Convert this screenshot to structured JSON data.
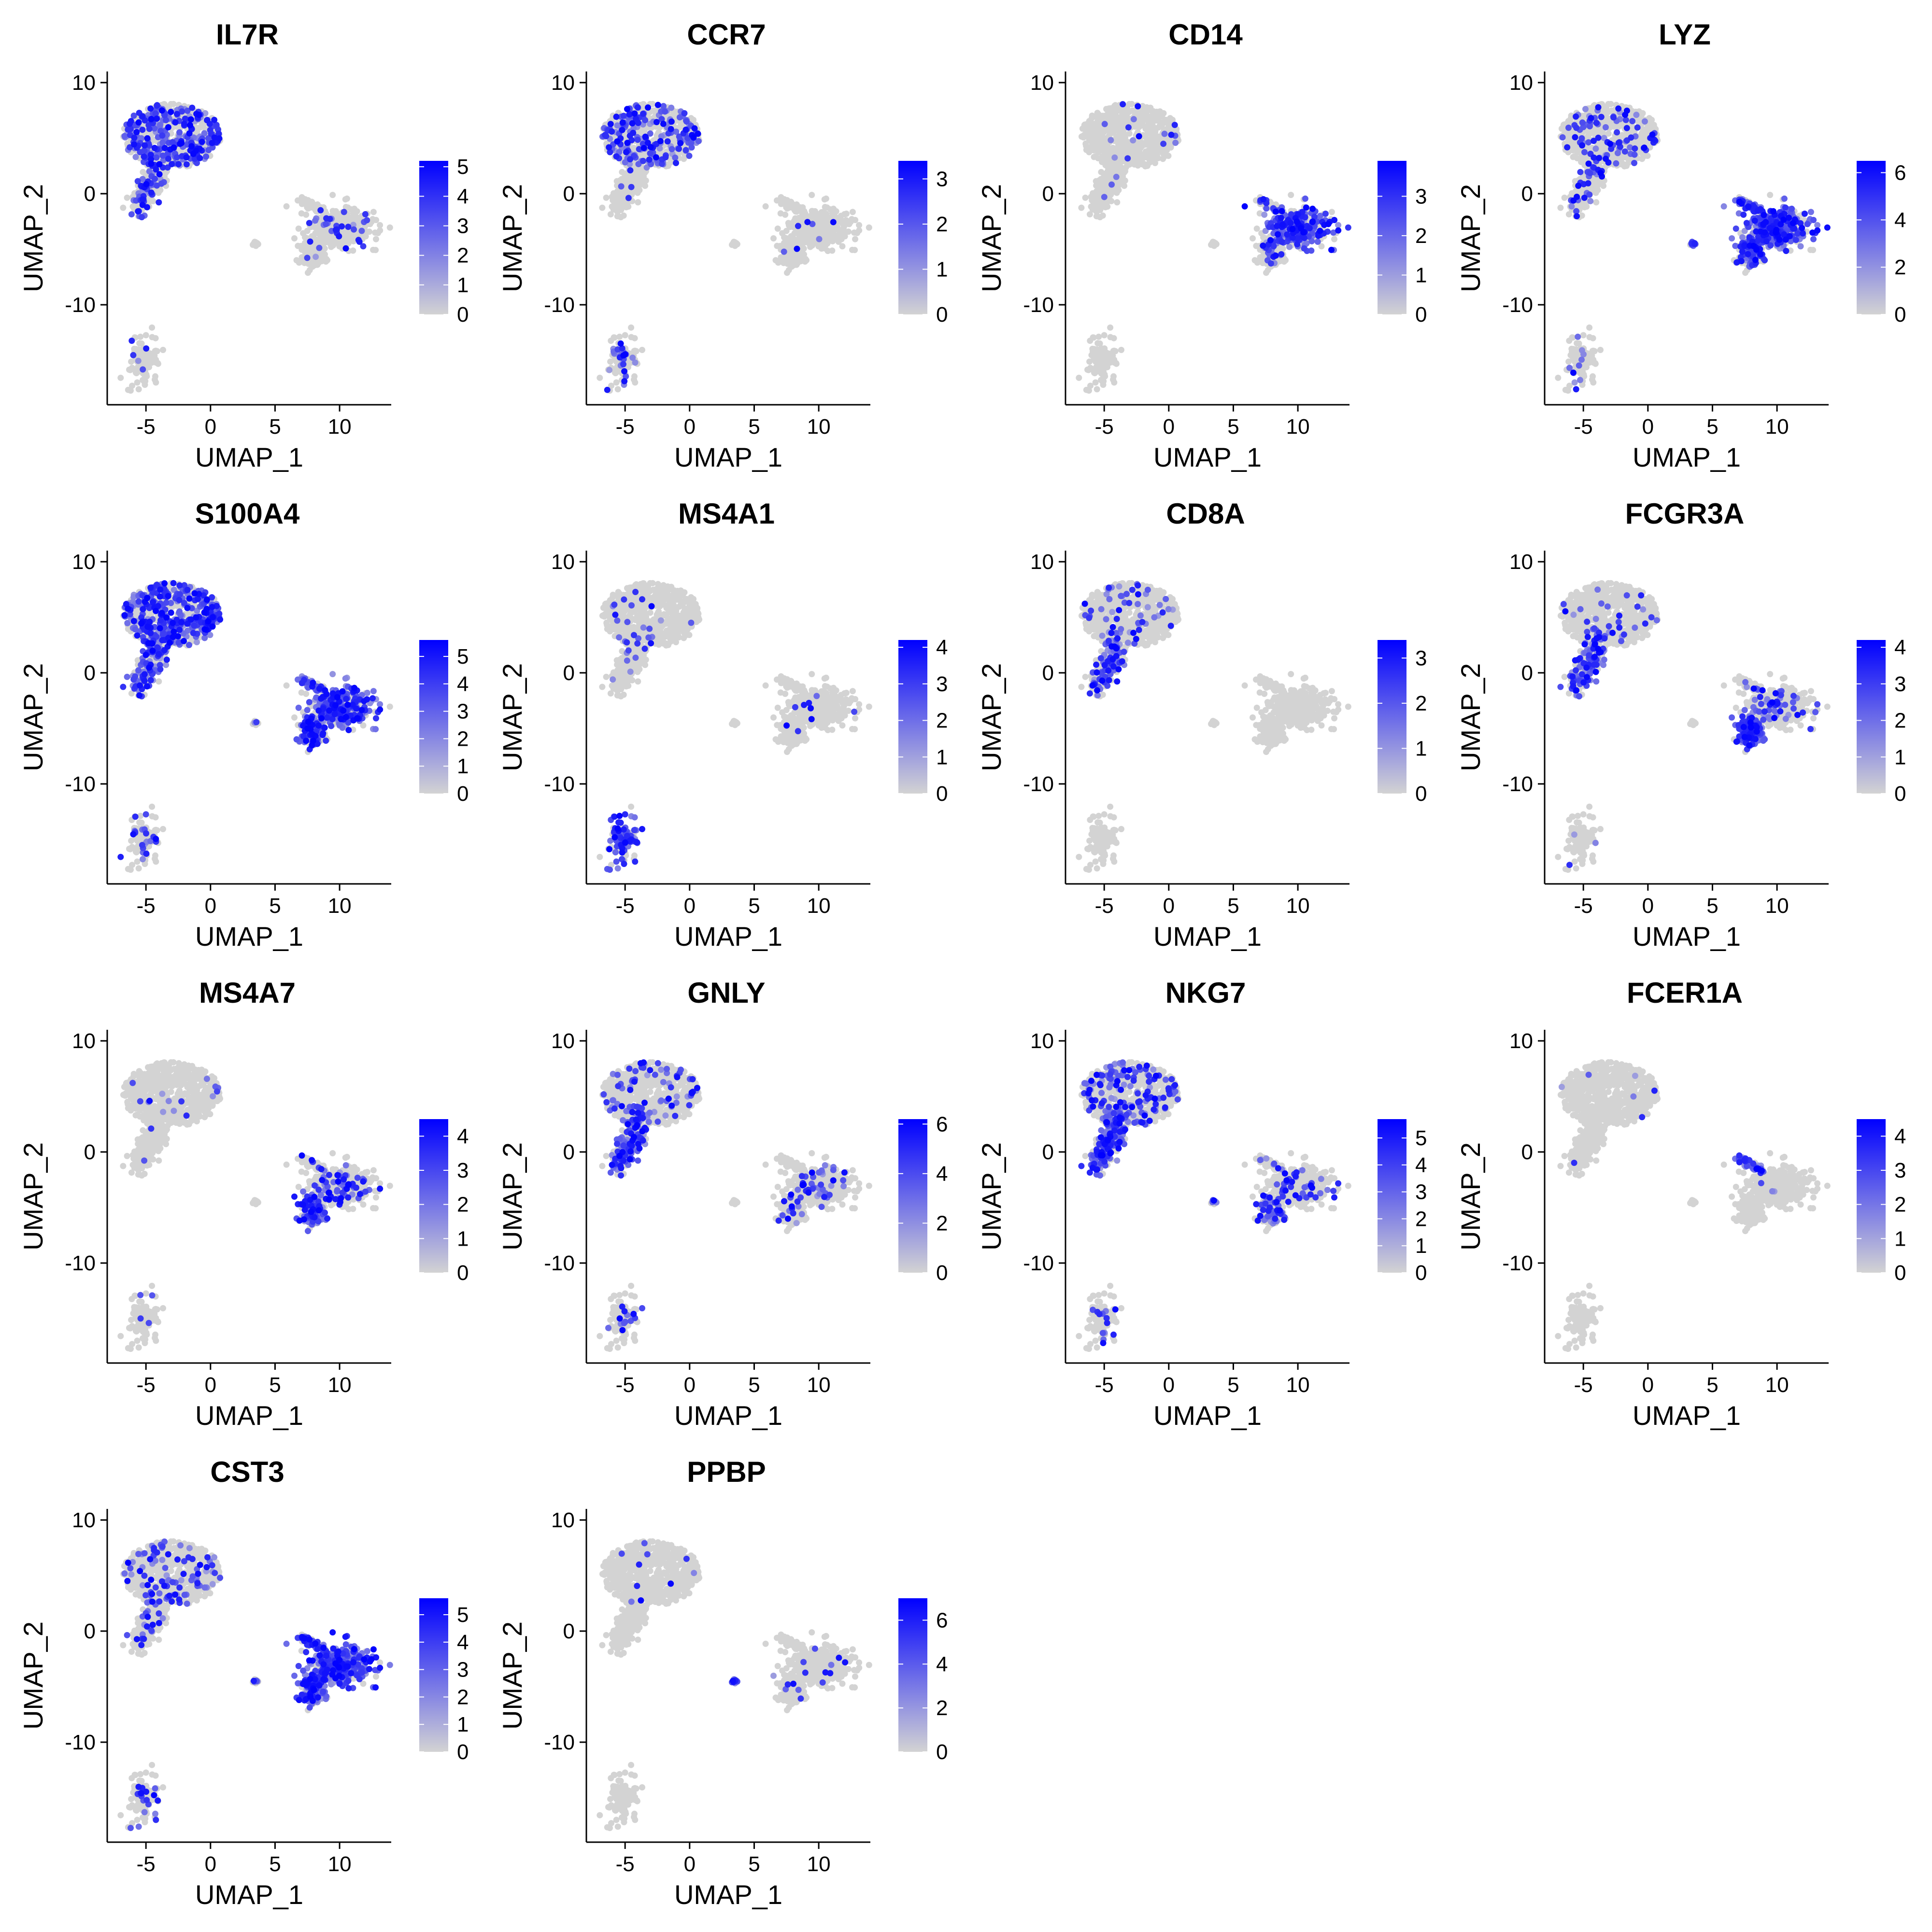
{
  "figure": {
    "colors": {
      "low": "#d3d3d3",
      "high": "#0000ff",
      "axis": "#000000"
    }
  },
  "chart_data": [
    {
      "type": "scatter",
      "title": "IL7R",
      "xlabel": "UMAP_1",
      "ylabel": "UMAP_2",
      "xlim": [
        -8,
        14
      ],
      "ylim": [
        -19,
        11
      ],
      "xticks": [
        -5,
        0,
        5,
        10
      ],
      "yticks": [
        -10,
        0,
        10
      ],
      "color_scale": {
        "min": 0,
        "max": 5.2,
        "ticks": [
          0,
          1,
          2,
          3,
          4,
          5
        ]
      },
      "cluster_expression": {
        "t_main": 0.45,
        "t_tail": 0.3,
        "b": 0.08,
        "mono": 0.08,
        "fcgr": 0.05,
        "dc_tip": 0.0,
        "platelet": 0.0
      }
    },
    {
      "type": "scatter",
      "title": "CCR7",
      "xlabel": "UMAP_1",
      "ylabel": "UMAP_2",
      "xlim": [
        -8,
        14
      ],
      "ylim": [
        -19,
        11
      ],
      "xticks": [
        -5,
        0,
        5,
        10
      ],
      "yticks": [
        -10,
        0,
        10
      ],
      "color_scale": {
        "min": 0,
        "max": 3.4,
        "ticks": [
          0,
          1,
          2,
          3
        ]
      },
      "cluster_expression": {
        "t_main": 0.3,
        "t_tail": 0.05,
        "b": 0.2,
        "mono": 0.02,
        "fcgr": 0.02,
        "dc_tip": 0.0,
        "platelet": 0.0
      }
    },
    {
      "type": "scatter",
      "title": "CD14",
      "xlabel": "UMAP_1",
      "ylabel": "UMAP_2",
      "xlim": [
        -8,
        14
      ],
      "ylim": [
        -19,
        11
      ],
      "xticks": [
        -5,
        0,
        5,
        10
      ],
      "yticks": [
        -10,
        0,
        10
      ],
      "color_scale": {
        "min": 0,
        "max": 3.9,
        "ticks": [
          0,
          1,
          2,
          3
        ]
      },
      "cluster_expression": {
        "t_main": 0.02,
        "t_tail": 0.02,
        "b": 0.0,
        "mono": 0.55,
        "fcgr": 0.1,
        "dc_tip": 0.2,
        "platelet": 0.0
      }
    },
    {
      "type": "scatter",
      "title": "LYZ",
      "xlabel": "UMAP_1",
      "ylabel": "UMAP_2",
      "xlim": [
        -8,
        14
      ],
      "ylim": [
        -19,
        11
      ],
      "xticks": [
        -5,
        0,
        5,
        10
      ],
      "yticks": [
        -10,
        0,
        10
      ],
      "color_scale": {
        "min": 0,
        "max": 6.5,
        "ticks": [
          0,
          2,
          4,
          6
        ]
      },
      "cluster_expression": {
        "t_main": 0.15,
        "t_tail": 0.15,
        "b": 0.15,
        "mono": 0.8,
        "fcgr": 0.55,
        "dc_tip": 0.7,
        "platelet": 0.5
      }
    },
    {
      "type": "scatter",
      "title": "S100A4",
      "xlabel": "UMAP_1",
      "ylabel": "UMAP_2",
      "xlim": [
        -8,
        14
      ],
      "ylim": [
        -19,
        11
      ],
      "xticks": [
        -5,
        0,
        5,
        10
      ],
      "yticks": [
        -10,
        0,
        10
      ],
      "color_scale": {
        "min": 0,
        "max": 5.6,
        "ticks": [
          0,
          1,
          2,
          3,
          4,
          5
        ]
      },
      "cluster_expression": {
        "t_main": 0.55,
        "t_tail": 0.55,
        "b": 0.2,
        "mono": 0.7,
        "fcgr": 0.65,
        "dc_tip": 0.6,
        "platelet": 0.2
      }
    },
    {
      "type": "scatter",
      "title": "MS4A1",
      "xlabel": "UMAP_1",
      "ylabel": "UMAP_2",
      "xlim": [
        -8,
        14
      ],
      "ylim": [
        -19,
        11
      ],
      "xticks": [
        -5,
        0,
        5,
        10
      ],
      "yticks": [
        -10,
        0,
        10
      ],
      "color_scale": {
        "min": 0,
        "max": 4.2,
        "ticks": [
          0,
          1,
          2,
          3,
          4
        ]
      },
      "cluster_expression": {
        "t_main": 0.03,
        "t_tail": 0.03,
        "b": 0.7,
        "mono": 0.03,
        "fcgr": 0.02,
        "dc_tip": 0.0,
        "platelet": 0.0
      }
    },
    {
      "type": "scatter",
      "title": "CD8A",
      "xlabel": "UMAP_1",
      "ylabel": "UMAP_2",
      "xlim": [
        -8,
        14
      ],
      "ylim": [
        -19,
        11
      ],
      "xticks": [
        -5,
        0,
        5,
        10
      ],
      "yticks": [
        -10,
        0,
        10
      ],
      "color_scale": {
        "min": 0,
        "max": 3.4,
        "ticks": [
          0,
          1,
          2,
          3
        ]
      },
      "cluster_expression": {
        "t_main": 0.08,
        "t_tail": 0.45,
        "b": 0.0,
        "mono": 0.0,
        "fcgr": 0.0,
        "dc_tip": 0.0,
        "platelet": 0.0
      }
    },
    {
      "type": "scatter",
      "title": "FCGR3A",
      "xlabel": "UMAP_1",
      "ylabel": "UMAP_2",
      "xlim": [
        -8,
        14
      ],
      "ylim": [
        -19,
        11
      ],
      "xticks": [
        -5,
        0,
        5,
        10
      ],
      "yticks": [
        -10,
        0,
        10
      ],
      "color_scale": {
        "min": 0,
        "max": 4.2,
        "ticks": [
          0,
          1,
          2,
          3,
          4
        ]
      },
      "cluster_expression": {
        "t_main": 0.05,
        "t_tail": 0.55,
        "b": 0.02,
        "mono": 0.15,
        "fcgr": 0.75,
        "dc_tip": 0.1,
        "platelet": 0.0
      }
    },
    {
      "type": "scatter",
      "title": "MS4A7",
      "xlabel": "UMAP_1",
      "ylabel": "UMAP_2",
      "xlim": [
        -8,
        14
      ],
      "ylim": [
        -19,
        11
      ],
      "xticks": [
        -5,
        0,
        5,
        10
      ],
      "yticks": [
        -10,
        0,
        10
      ],
      "color_scale": {
        "min": 0,
        "max": 4.5,
        "ticks": [
          0,
          1,
          2,
          3,
          4
        ]
      },
      "cluster_expression": {
        "t_main": 0.02,
        "t_tail": 0.02,
        "b": 0.02,
        "mono": 0.2,
        "fcgr": 0.55,
        "dc_tip": 0.1,
        "platelet": 0.0
      }
    },
    {
      "type": "scatter",
      "title": "GNLY",
      "xlabel": "UMAP_1",
      "ylabel": "UMAP_2",
      "xlim": [
        -8,
        14
      ],
      "ylim": [
        -19,
        11
      ],
      "xticks": [
        -5,
        0,
        5,
        10
      ],
      "yticks": [
        -10,
        0,
        10
      ],
      "color_scale": {
        "min": 0,
        "max": 6.2,
        "ticks": [
          0,
          2,
          4,
          6
        ]
      },
      "cluster_expression": {
        "t_main": 0.12,
        "t_tail": 0.6,
        "b": 0.1,
        "mono": 0.12,
        "fcgr": 0.1,
        "dc_tip": 0.0,
        "platelet": 0.0
      }
    },
    {
      "type": "scatter",
      "title": "NKG7",
      "xlabel": "UMAP_1",
      "ylabel": "UMAP_2",
      "xlim": [
        -8,
        14
      ],
      "ylim": [
        -19,
        11
      ],
      "xticks": [
        -5,
        0,
        5,
        10
      ],
      "yticks": [
        -10,
        0,
        10
      ],
      "color_scale": {
        "min": 0,
        "max": 5.7,
        "ticks": [
          0,
          1,
          2,
          3,
          4,
          5
        ]
      },
      "cluster_expression": {
        "t_main": 0.25,
        "t_tail": 0.75,
        "b": 0.1,
        "mono": 0.12,
        "fcgr": 0.3,
        "dc_tip": 0.1,
        "platelet": 0.2
      }
    },
    {
      "type": "scatter",
      "title": "FCER1A",
      "xlabel": "UMAP_1",
      "ylabel": "UMAP_2",
      "xlim": [
        -8,
        14
      ],
      "ylim": [
        -19,
        11
      ],
      "xticks": [
        -5,
        0,
        5,
        10
      ],
      "yticks": [
        -10,
        0,
        10
      ],
      "color_scale": {
        "min": 0,
        "max": 4.5,
        "ticks": [
          0,
          1,
          2,
          3,
          4
        ]
      },
      "cluster_expression": {
        "t_main": 0.01,
        "t_tail": 0.01,
        "b": 0.0,
        "mono": 0.01,
        "fcgr": 0.0,
        "dc_tip": 0.8,
        "platelet": 0.0
      }
    },
    {
      "type": "scatter",
      "title": "CST3",
      "xlabel": "UMAP_1",
      "ylabel": "UMAP_2",
      "xlim": [
        -8,
        14
      ],
      "ylim": [
        -19,
        11
      ],
      "xticks": [
        -5,
        0,
        5,
        10
      ],
      "yticks": [
        -10,
        0,
        10
      ],
      "color_scale": {
        "min": 0,
        "max": 5.6,
        "ticks": [
          0,
          1,
          2,
          3,
          4,
          5
        ]
      },
      "cluster_expression": {
        "t_main": 0.15,
        "t_tail": 0.15,
        "b": 0.15,
        "mono": 0.75,
        "fcgr": 0.7,
        "dc_tip": 0.7,
        "platelet": 0.6
      }
    },
    {
      "type": "scatter",
      "title": "PPBP",
      "xlabel": "UMAP_1",
      "ylabel": "UMAP_2",
      "xlim": [
        -8,
        14
      ],
      "ylim": [
        -19,
        11
      ],
      "xticks": [
        -5,
        0,
        5,
        10
      ],
      "yticks": [
        -10,
        0,
        10
      ],
      "color_scale": {
        "min": 0,
        "max": 7.0,
        "ticks": [
          0,
          2,
          4,
          6
        ]
      },
      "cluster_expression": {
        "t_main": 0.02,
        "t_tail": 0.0,
        "b": 0.0,
        "mono": 0.03,
        "fcgr": 0.03,
        "dc_tip": 0.0,
        "platelet": 0.95
      }
    }
  ]
}
